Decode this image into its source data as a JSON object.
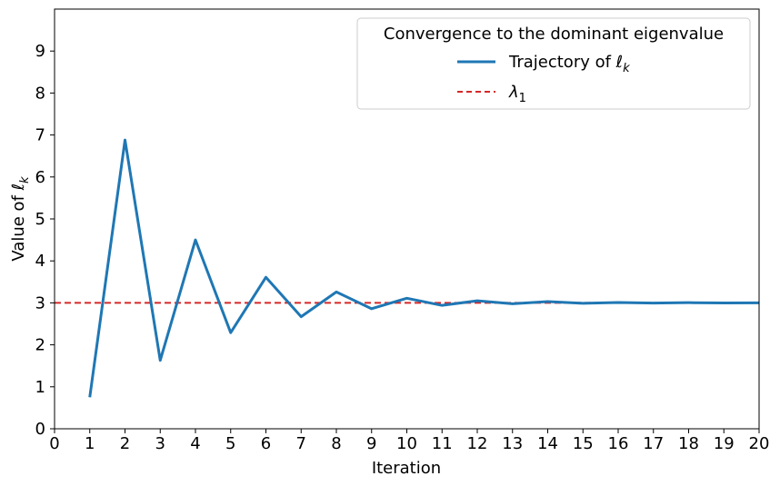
{
  "chart_data": {
    "type": "line",
    "xlabel": "Iteration",
    "ylabel": "Value of ℓ",
    "ylabel_sub": "k",
    "xlim": [
      0,
      20
    ],
    "ylim": [
      0,
      10
    ],
    "xticks": [
      0,
      1,
      2,
      3,
      4,
      5,
      6,
      7,
      8,
      9,
      10,
      11,
      12,
      13,
      14,
      15,
      16,
      17,
      18,
      19,
      20
    ],
    "yticks": [
      0,
      1,
      2,
      3,
      4,
      5,
      6,
      7,
      8,
      9
    ],
    "grid": false,
    "legend": {
      "title": "Convergence to the dominant eigenvalue",
      "placement": "top-right",
      "entries": [
        {
          "label": "Trajectory of ℓ",
          "sub": "k"
        },
        {
          "label": "λ",
          "sub": "1"
        }
      ]
    },
    "series": [
      {
        "label": "Trajectory of ℓ",
        "color": "#1f77b4",
        "x": [
          1,
          2,
          3,
          4,
          5,
          6,
          7,
          8,
          9,
          10,
          11,
          12,
          13,
          14,
          15,
          16,
          17,
          18,
          19,
          20
        ],
        "y": [
          0.75,
          6.88,
          1.63,
          4.5,
          2.29,
          3.61,
          2.67,
          3.26,
          2.86,
          3.11,
          2.94,
          3.05,
          2.98,
          3.03,
          2.99,
          3.01,
          2.995,
          3.005,
          2.998,
          3.0
        ]
      },
      {
        "label": "λ",
        "color": "#d62728",
        "style": "dashed",
        "value": 3
      }
    ]
  }
}
